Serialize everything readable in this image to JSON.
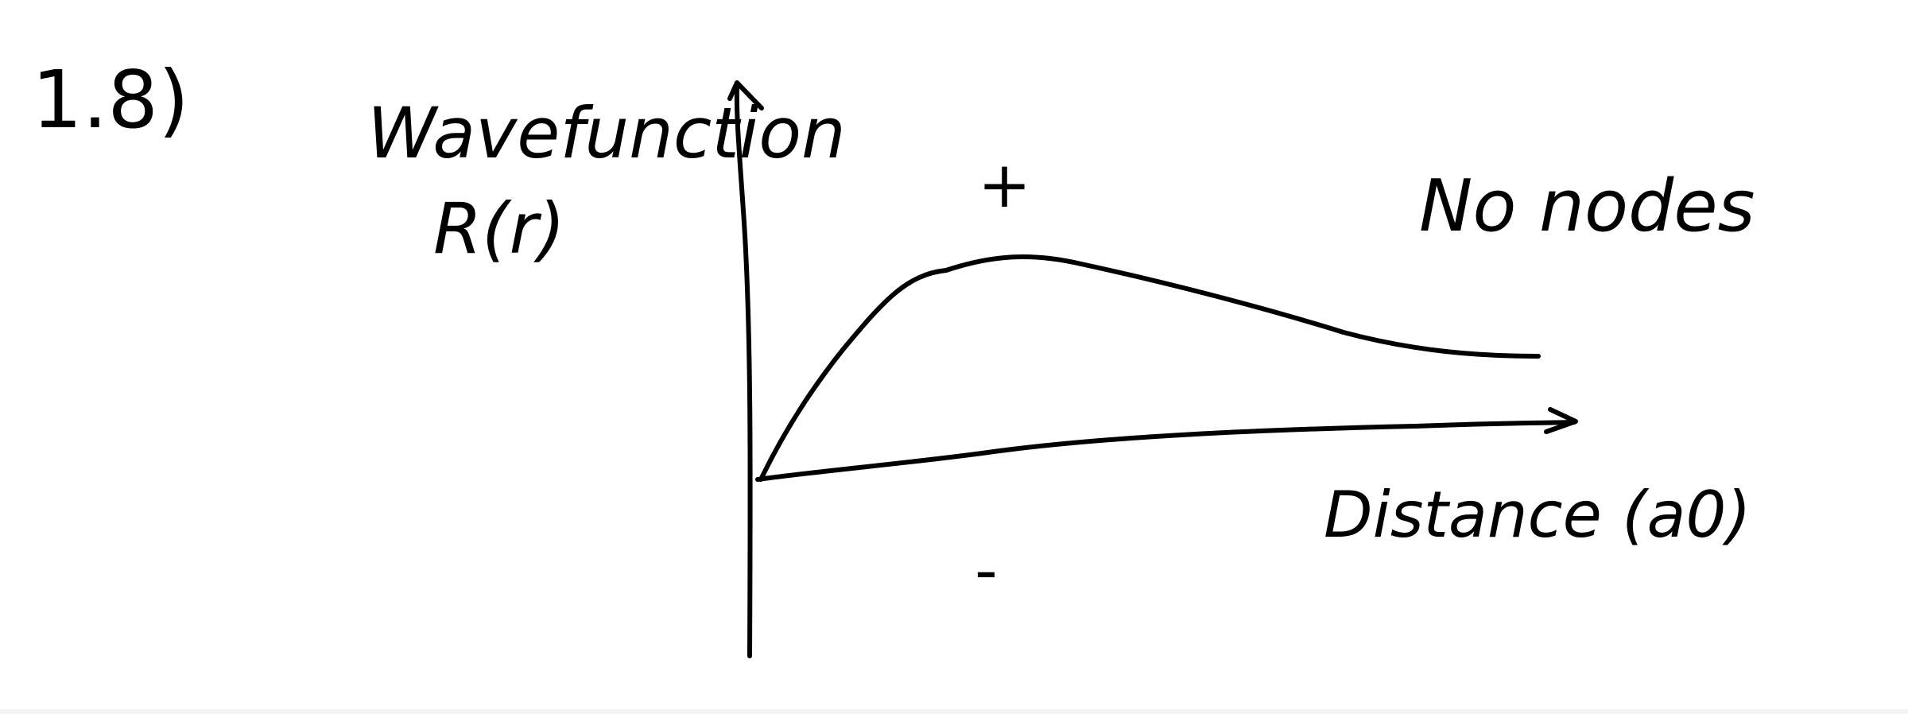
{
  "problem_number": "1.8)",
  "y_axis_label_line1": "Wavefunction",
  "y_axis_label_line2": "R(r)",
  "x_axis_label": "Distance (a0)",
  "plus_sign": "+",
  "minus_sign": "-",
  "annotation": "No nodes",
  "colors": {
    "ink": "#000000",
    "background": "#ffffff"
  }
}
